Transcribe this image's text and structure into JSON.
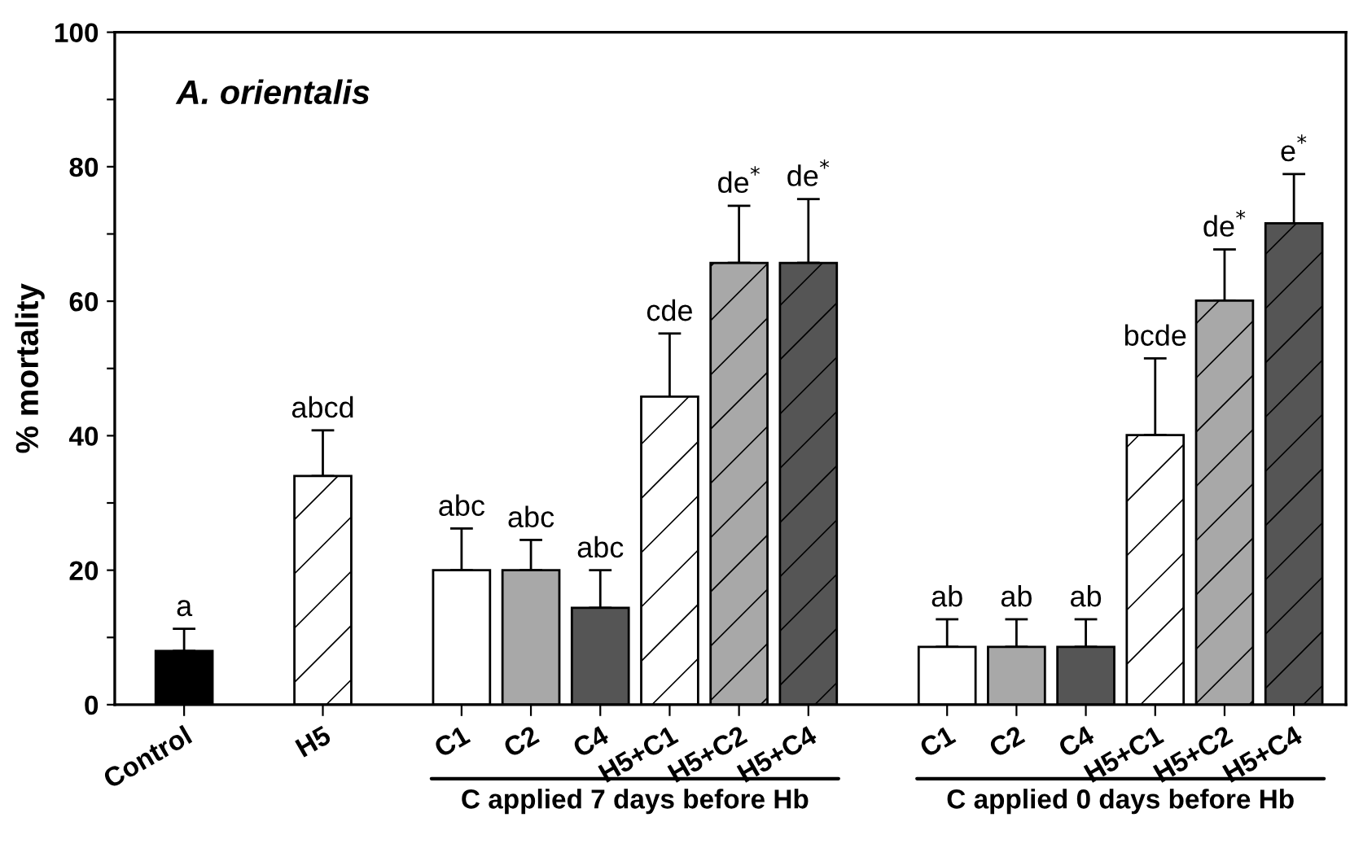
{
  "chart_data": {
    "type": "bar",
    "title": "A. orientalis",
    "ylabel": "% mortality",
    "categories": [
      "Control",
      null,
      "H5",
      null,
      "C1",
      "C2",
      "C4",
      "H5+C1",
      "H5+C2",
      "H5+C4",
      null,
      "C1",
      "C2",
      "C4",
      "H5+C1",
      "H5+C2",
      "H5+C4"
    ],
    "series": [
      {
        "colors": [
          "#000000",
          null,
          null,
          null,
          "#ffffff",
          "#a8a8a8",
          "#555555",
          null,
          null,
          null,
          null,
          "#ffffff",
          "#a8a8a8",
          "#555555",
          null,
          null,
          null
        ],
        "values": [
          8,
          null,
          null,
          null,
          20,
          20,
          14.4,
          null,
          null,
          null,
          null,
          8.6,
          8.6,
          8.6,
          null,
          null,
          null
        ],
        "errors": [
          [
            8,
            11.3
          ],
          null,
          null,
          null,
          [
            20,
            26.2
          ],
          [
            20,
            24.5
          ],
          [
            14.4,
            20
          ],
          null,
          null,
          null,
          null,
          [
            8.6,
            12.7
          ],
          [
            8.6,
            12.7
          ],
          [
            8.6,
            12.7
          ],
          null,
          null,
          null
        ],
        "value_labels": [
          "a",
          null,
          null,
          null,
          "abc",
          "abc",
          "abc",
          null,
          null,
          null,
          null,
          "ab",
          "ab",
          "ab",
          null,
          null,
          null
        ]
      },
      {
        "colors": [
          null,
          null,
          "#ffffff",
          null,
          null,
          null,
          null,
          "#ffffff",
          "#a8a8a8",
          "#555555",
          null,
          null,
          null,
          null,
          "#ffffff",
          "#a8a8a8",
          "#555555"
        ],
        "values": [
          null,
          null,
          34,
          null,
          null,
          null,
          null,
          45.8,
          65.7,
          65.7,
          null,
          null,
          null,
          null,
          40.1,
          60.1,
          71.6
        ],
        "errors": [
          null,
          null,
          [
            34,
            40.8
          ],
          null,
          null,
          null,
          null,
          [
            45.8,
            55.2
          ],
          [
            65.7,
            74.2
          ],
          [
            65.7,
            75.2
          ],
          null,
          null,
          null,
          null,
          [
            40.1,
            51.5
          ],
          [
            60.1,
            67.7
          ],
          [
            71.6,
            78.9
          ]
        ],
        "value_labels": [
          null,
          null,
          "abcd",
          null,
          null,
          null,
          null,
          "cde",
          "de$^{*}$",
          "de$^{*}$",
          null,
          null,
          null,
          null,
          "bcde",
          "de$^{*}$",
          "e$^{*}$"
        ]
      }
    ],
    "ylim": [
      0,
      100
    ],
    "yticks": [
      0,
      {
        "value": 10,
        "label": null
      },
      20,
      {
        "value": 30,
        "label": null
      },
      40,
      {
        "value": 50,
        "label": null
      },
      60,
      {
        "value": 70,
        "label": null
      },
      80,
      {
        "value": 90,
        "label": null
      },
      100
    ],
    "annotations": [
      "C applied 7 days before Hb",
      "C applied 0 days before Hb"
    ],
    "grid": false,
    "legend": false
  }
}
